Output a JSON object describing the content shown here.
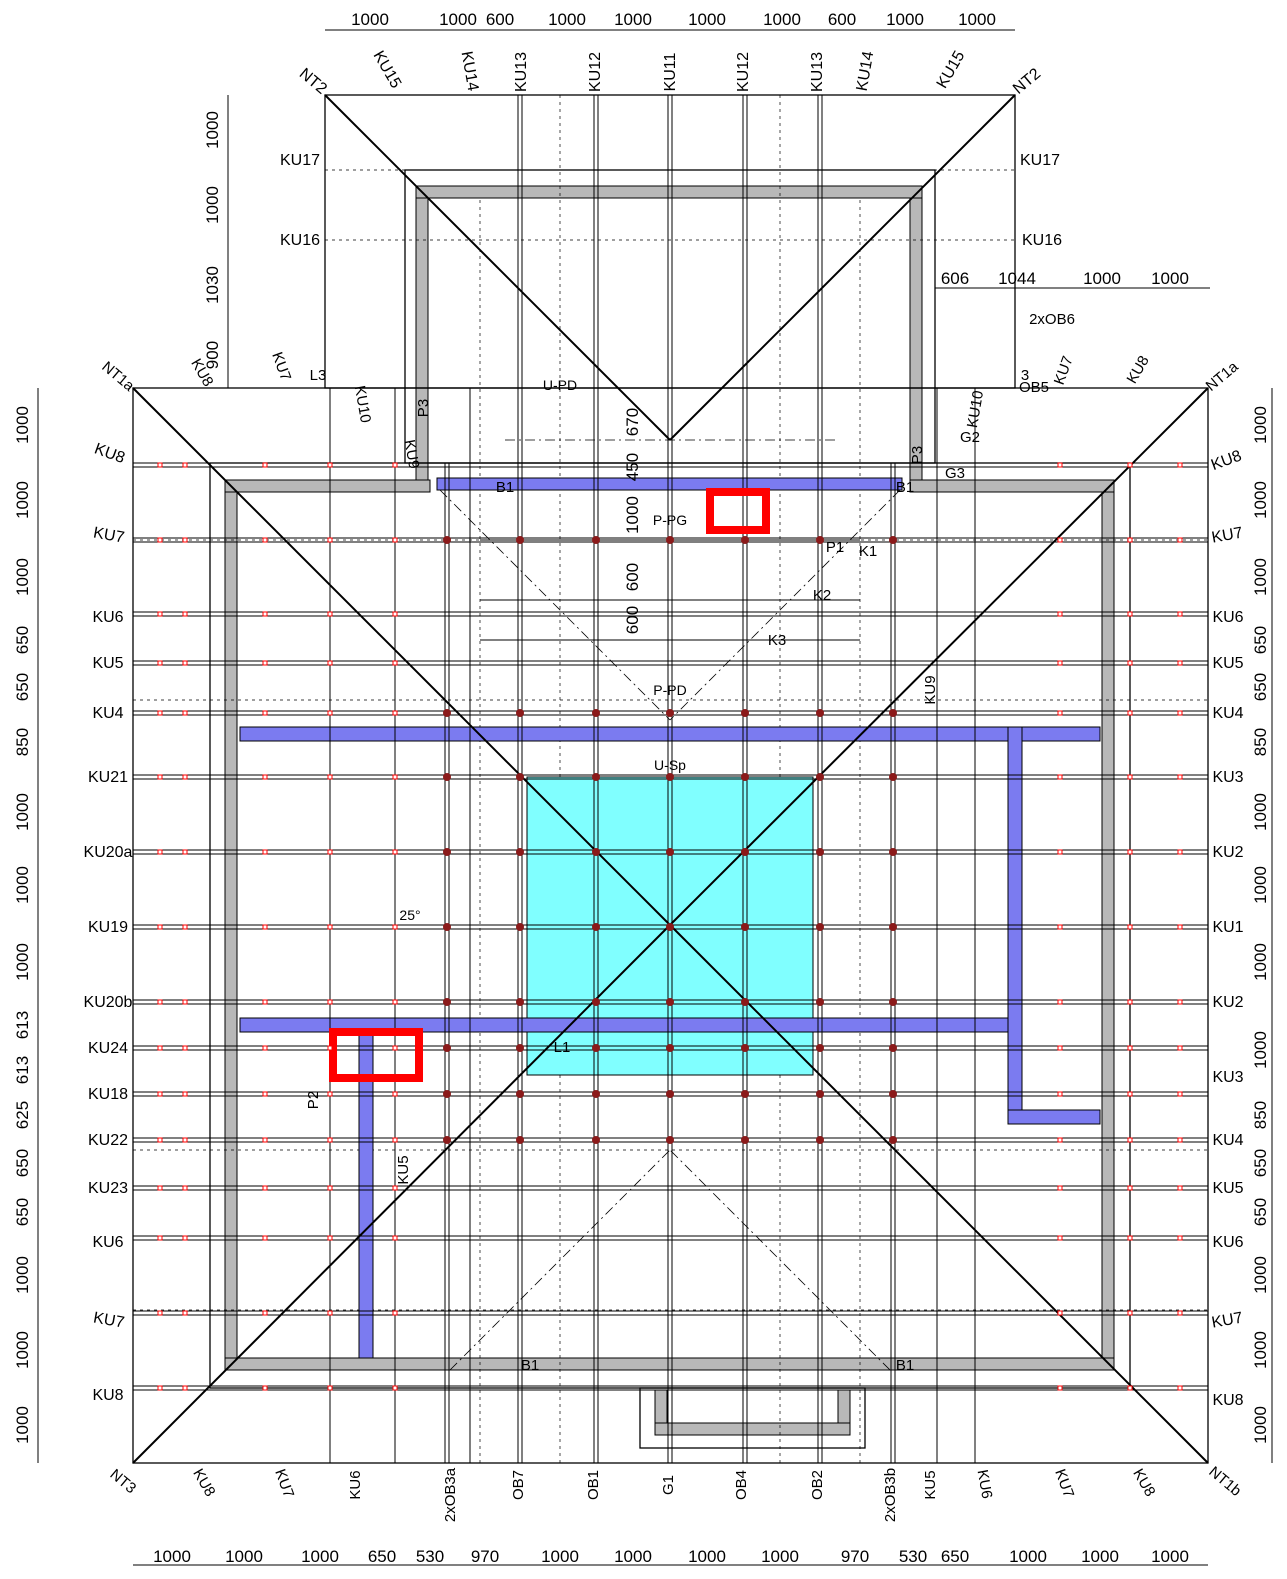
{
  "dimensions": {
    "top": [
      "1000",
      "1000",
      "600",
      "1000",
      "1000",
      "1000",
      "1000",
      "600",
      "1000",
      "1000"
    ],
    "upper_right": [
      "606",
      "1044",
      "1000",
      "1000"
    ],
    "bottom": [
      "1000",
      "1000",
      "1000",
      "650",
      "530",
      "970",
      "1000",
      "1000",
      "1000",
      "1000",
      "970",
      "530",
      "650",
      "1000",
      "1000",
      "1000"
    ],
    "upper_left": [
      "1000",
      "1000",
      "1030",
      "900"
    ],
    "left": [
      "1000",
      "1000",
      "1000",
      "650",
      "650",
      "850",
      "1000",
      "1000",
      "1000",
      "613",
      "613",
      "625",
      "650",
      "650",
      "1000",
      "1000",
      "1000"
    ],
    "right": [
      "1000",
      "1000",
      "1000",
      "650",
      "650",
      "850",
      "1000",
      "1000",
      "1000",
      "1000",
      "850",
      "650",
      "650",
      "1000",
      "1000",
      "1000"
    ],
    "interior": [
      "450",
      "670",
      "1000",
      "600",
      "600"
    ]
  },
  "labels": {
    "top": [
      "NT2",
      "KU15",
      "KU14",
      "KU13",
      "KU12",
      "KU11",
      "KU12",
      "KU13",
      "KU14",
      "KU15",
      "NT2"
    ],
    "top_side": [
      "KU17",
      "KU16",
      "KU17",
      "KU16"
    ],
    "upper_corners": [
      "NT1a",
      "KU8",
      "KU7",
      "L3",
      "KU10",
      "KU9",
      "P3",
      "KU10",
      "KU7",
      "KU8",
      "NT1a",
      "3",
      "OB5",
      "2xOB6",
      "G2",
      "G3",
      "P3"
    ],
    "left": [
      "KU8",
      "KU7",
      "KU6",
      "KU5",
      "KU4",
      "KU21",
      "KU20a",
      "KU19",
      "KU20b",
      "KU24",
      "KU18",
      "KU22",
      "KU23",
      "KU6",
      "KU7",
      "KU8"
    ],
    "right": [
      "KU8",
      "KU7",
      "KU6",
      "KU5",
      "KU4",
      "KU3",
      "KU2",
      "KU1",
      "KU2",
      "KU3",
      "KU4",
      "KU5",
      "KU6",
      "KU7",
      "KU8"
    ],
    "bottom": [
      "NT3",
      "KU8",
      "KU7",
      "KU6",
      "2xOB3a",
      "OB7",
      "OB1",
      "G1",
      "OB4",
      "OB2",
      "2xOB3b",
      "KU5",
      "KU6",
      "KU7",
      "KU8",
      "NT1b"
    ],
    "beams": [
      "B1",
      "B1",
      "B1",
      "B1",
      "P1",
      "K1",
      "K2",
      "K3",
      "L1",
      "P2",
      "KU5",
      "KU9"
    ],
    "surfaces": [
      "P-PG",
      "P-PD",
      "U-PD",
      "U-Sp",
      "25°"
    ]
  },
  "colors": {
    "linework": "#000000",
    "wall": "#b8b8b8",
    "beam": "#7b7bf0",
    "slab": "#80ffff",
    "opening": "#ff0000",
    "dots": "#8b1a1a"
  }
}
